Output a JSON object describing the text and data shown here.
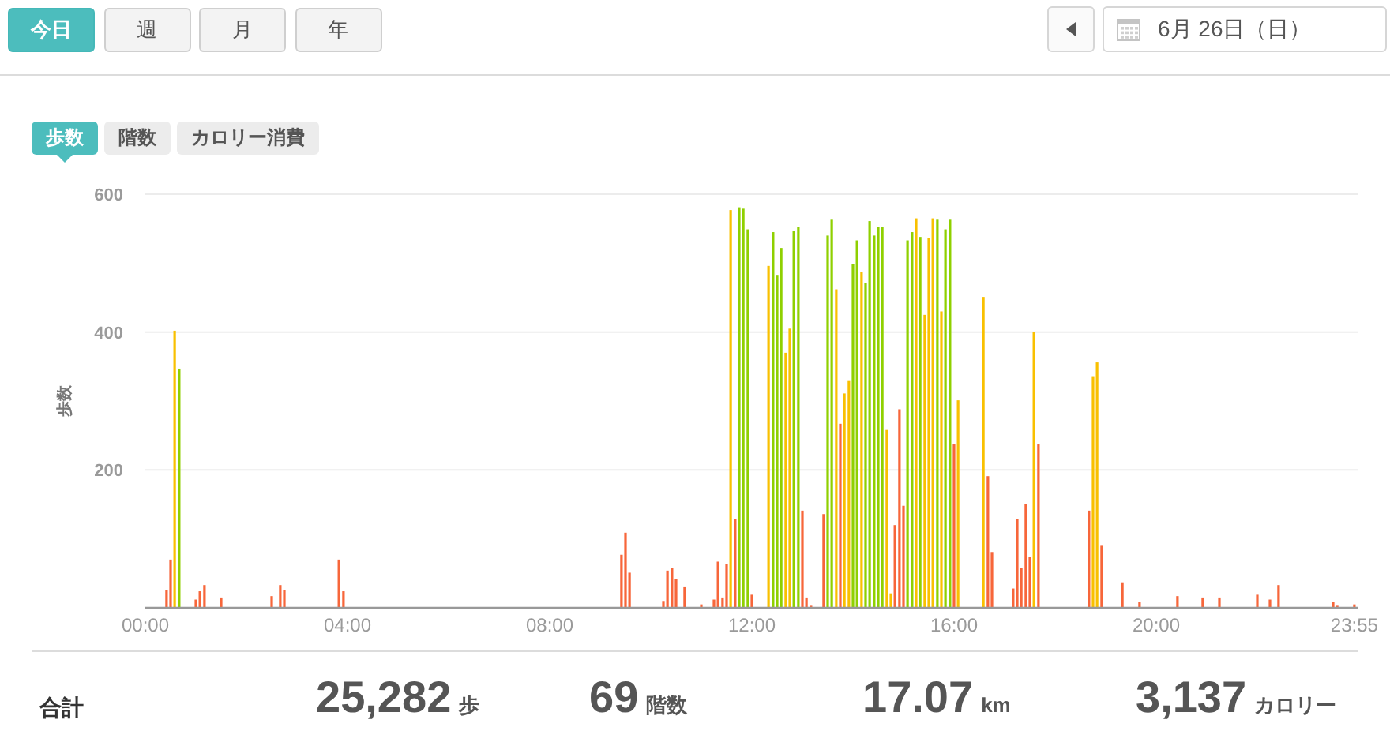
{
  "chart_data": [
    {
      "type": "bar",
      "ylabel": "歩数",
      "annotations": [
        "今日",
        "週",
        "月",
        "年",
        "6月 26日（日）",
        "歩数",
        "階数",
        "カロリー消費"
      ],
      "x": [
        0.42,
        0.5,
        0.58,
        0.67,
        1.0,
        1.08,
        1.17,
        1.5,
        2.5,
        2.67,
        2.75,
        3.83,
        3.92,
        9.42,
        9.5,
        9.58,
        10.25,
        10.33,
        10.42,
        10.5,
        10.67,
        11.0,
        11.25,
        11.33,
        11.42,
        11.5,
        11.58,
        11.67,
        11.75,
        11.83,
        11.92,
        12.0,
        12.33,
        12.42,
        12.5,
        12.58,
        12.67,
        12.75,
        12.83,
        12.92,
        13.0,
        13.08,
        13.17,
        13.42,
        13.5,
        13.58,
        13.67,
        13.75,
        13.83,
        13.92,
        14.0,
        14.08,
        14.17,
        14.25,
        14.33,
        14.42,
        14.5,
        14.58,
        14.67,
        14.75,
        14.83,
        14.92,
        15.0,
        15.08,
        15.17,
        15.25,
        15.33,
        15.42,
        15.5,
        15.58,
        15.67,
        15.75,
        15.83,
        15.92,
        16.0,
        16.08,
        16.58,
        16.67,
        16.75,
        17.17,
        17.25,
        17.33,
        17.42,
        17.5,
        17.58,
        17.67,
        18.67,
        18.75,
        18.83,
        18.92,
        19.33,
        19.67,
        20.42,
        20.92,
        21.25,
        22.0,
        22.25,
        22.42,
        23.5,
        23.58,
        23.92
      ],
      "values": [
        26,
        70,
        402,
        347,
        12,
        24,
        33,
        15,
        17,
        33,
        26,
        70,
        24,
        77,
        109,
        51,
        10,
        54,
        58,
        42,
        31,
        5,
        12,
        67,
        15,
        63,
        577,
        129,
        581,
        579,
        549,
        19,
        496,
        545,
        483,
        522,
        370,
        405,
        547,
        552,
        141,
        15,
        3,
        136,
        540,
        563,
        462,
        267,
        311,
        329,
        499,
        533,
        487,
        471,
        561,
        540,
        552,
        552,
        258,
        21,
        120,
        288,
        148,
        533,
        545,
        565,
        538,
        425,
        536,
        565,
        563,
        430,
        549,
        563,
        237,
        301,
        451,
        191,
        81,
        28,
        129,
        58,
        150,
        74,
        400,
        237,
        141,
        336,
        356,
        90,
        37,
        8,
        17,
        15,
        15,
        19,
        12,
        33,
        8,
        3,
        5
      ],
      "colors": [
        "#f7663a",
        "#f7663a",
        "#f9c000",
        "#8fd000",
        "#f7663a",
        "#f7663a",
        "#f7663a",
        "#f7663a",
        "#f7663a",
        "#f7663a",
        "#f7663a",
        "#f7663a",
        "#f7663a",
        "#f7663a",
        "#f7663a",
        "#f7663a",
        "#f7663a",
        "#f7663a",
        "#f7663a",
        "#f7663a",
        "#f7663a",
        "#f7663a",
        "#f7663a",
        "#f7663a",
        "#f7663a",
        "#f7663a",
        "#f9c000",
        "#f7663a",
        "#8fd000",
        "#8fd000",
        "#8fd000",
        "#f7663a",
        "#f9c000",
        "#8fd000",
        "#8fd000",
        "#8fd000",
        "#f9c000",
        "#f9c000",
        "#8fd000",
        "#8fd000",
        "#f7663a",
        "#f7663a",
        "#f7663a",
        "#f7663a",
        "#8fd000",
        "#8fd000",
        "#f9c000",
        "#f7663a",
        "#f9c000",
        "#f9c000",
        "#8fd000",
        "#8fd000",
        "#f9c000",
        "#8fd000",
        "#8fd000",
        "#8fd000",
        "#8fd000",
        "#8fd000",
        "#f9c000",
        "#f9c000",
        "#f7663a",
        "#f7663a",
        "#f7663a",
        "#8fd000",
        "#8fd000",
        "#f9c000",
        "#8fd000",
        "#f9c000",
        "#f9c000",
        "#f9c000",
        "#8fd000",
        "#f9c000",
        "#8fd000",
        "#8fd000",
        "#f7663a",
        "#f9c000",
        "#f9c000",
        "#f7663a",
        "#f7663a",
        "#f7663a",
        "#f7663a",
        "#f7663a",
        "#f7663a",
        "#f7663a",
        "#f9c000",
        "#f7663a",
        "#f7663a",
        "#f9c000",
        "#f9c000",
        "#f7663a",
        "#f7663a",
        "#f7663a",
        "#f7663a",
        "#f7663a",
        "#f7663a",
        "#f7663a",
        "#f7663a",
        "#f7663a",
        "#f7663a",
        "#f7663a",
        "#f7663a"
      ],
      "xlim": [
        0,
        24
      ],
      "xticks": [
        {
          "value": 0,
          "label": "00:00"
        },
        {
          "value": 4,
          "label": "04:00"
        },
        {
          "value": 8,
          "label": "08:00"
        },
        {
          "value": 12,
          "label": "12:00"
        },
        {
          "value": 16,
          "label": "16:00"
        },
        {
          "value": 20,
          "label": "20:00"
        },
        {
          "value": 23.92,
          "label": "23:55"
        }
      ],
      "ylim": [
        0,
        600
      ],
      "yticks": [
        200,
        400,
        600
      ],
      "grid": "y"
    },
    {
      "type": "other",
      "title": "合計",
      "annotations": [
        "25,282 歩",
        "69 階数",
        "17.07 km",
        "3,137 カロリー"
      ]
    }
  ]
}
